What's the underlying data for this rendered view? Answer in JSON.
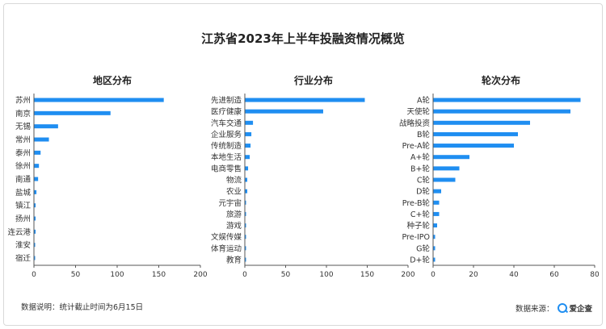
{
  "title": "江苏省2023年上半年投融资情况概览",
  "footnote": "数据说明：统计截止时间为6月15日",
  "source_label": "数据来源：",
  "brand": "爱企查",
  "colors": {
    "bar": "#1f8ef1",
    "axis": "#555555",
    "text": "#333333"
  },
  "chart_data": [
    {
      "type": "bar",
      "orientation": "horizontal",
      "title": "地区分布",
      "categories": [
        "苏州",
        "南京",
        "无锡",
        "常州",
        "泰州",
        "徐州",
        "南通",
        "盐城",
        "镇江",
        "扬州",
        "连云港",
        "淮安",
        "宿迁"
      ],
      "values": [
        156,
        92,
        29,
        18,
        8,
        6,
        5,
        3,
        2,
        2,
        2,
        1,
        1
      ],
      "xlim": [
        0,
        200
      ],
      "xticks": [
        0,
        50,
        100,
        150,
        200
      ]
    },
    {
      "type": "bar",
      "orientation": "horizontal",
      "title": "行业分布",
      "categories": [
        "先进制造",
        "医疗健康",
        "汽车交通",
        "企业服务",
        "传统制造",
        "本地生活",
        "电商零售",
        "物流",
        "农业",
        "元宇宙",
        "旅游",
        "游戏",
        "文娱传媒",
        "体育运动",
        "教育"
      ],
      "values": [
        147,
        96,
        10,
        8,
        7,
        6,
        4,
        3,
        3,
        1,
        1,
        1,
        1,
        1,
        1
      ],
      "xlim": [
        0,
        200
      ],
      "xticks": [
        0,
        50,
        100,
        150,
        200
      ]
    },
    {
      "type": "bar",
      "orientation": "horizontal",
      "title": "轮次分布",
      "categories": [
        "A轮",
        "天使轮",
        "战略投资",
        "B轮",
        "Pre-A轮",
        "A+轮",
        "B+轮",
        "C轮",
        "D轮",
        "Pre-B轮",
        "C+轮",
        "种子轮",
        "Pre-IPO",
        "G轮",
        "D+轮"
      ],
      "values": [
        73,
        68,
        48,
        42,
        40,
        18,
        13,
        11,
        4,
        3,
        3,
        2,
        1,
        1,
        1
      ],
      "xlim": [
        0,
        80
      ],
      "xticks": [
        0,
        20,
        40,
        60,
        80
      ]
    }
  ]
}
